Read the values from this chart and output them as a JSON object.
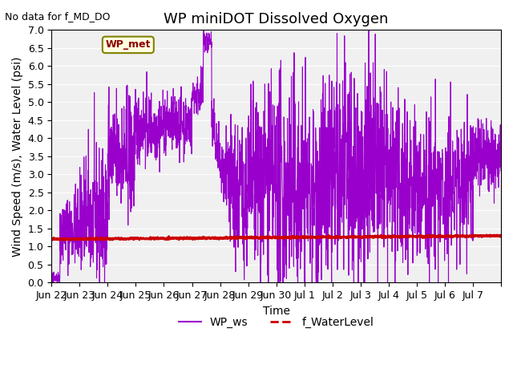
{
  "title": "WP miniDOT Dissolved Oxygen",
  "subtitle": "No data for f_MD_DO",
  "xlabel": "Time",
  "ylabel": "Wind Speed (m/s), Water Level (psi)",
  "ylim": [
    0.0,
    7.0
  ],
  "yticks": [
    0.0,
    0.5,
    1.0,
    1.5,
    2.0,
    2.5,
    3.0,
    3.5,
    4.0,
    4.5,
    5.0,
    5.5,
    6.0,
    6.5,
    7.0
  ],
  "xtick_positions": [
    0,
    1,
    2,
    3,
    4,
    5,
    6,
    7,
    8,
    9,
    10,
    11,
    12,
    13,
    14,
    15,
    16
  ],
  "xtick_labels": [
    "Jun 22",
    "Jun 23",
    "Jun 24",
    "Jun 25",
    "Jun 26",
    "Jun 27",
    "Jun 28",
    "Jun 29",
    "Jun 30",
    "Jul 1",
    "Jul 2",
    "Jul 3",
    "Jul 4",
    "Jul 5",
    "Jul 6",
    "Jul 7",
    ""
  ],
  "legend_ws_label": "WP_ws",
  "legend_wl_label": "f_WaterLevel",
  "annotation_label": "WP_met",
  "ws_color": "#9900CC",
  "wl_color": "#CC0000",
  "bg_plot_color": "#F0F0F0",
  "bg_fig_color": "#FFFFFF",
  "grid_color": "#FFFFFF",
  "title_fontsize": 13,
  "label_fontsize": 10,
  "tick_fontsize": 9
}
